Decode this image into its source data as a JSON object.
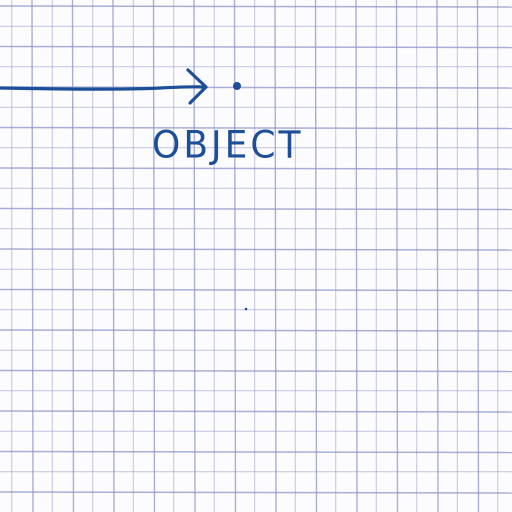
{
  "paper": {
    "background_color": "#fcfcfe",
    "grid_line_color": "#8f94c8"
  },
  "drawing": {
    "ink_color": "#1c4f98",
    "label": "OBJECT"
  }
}
